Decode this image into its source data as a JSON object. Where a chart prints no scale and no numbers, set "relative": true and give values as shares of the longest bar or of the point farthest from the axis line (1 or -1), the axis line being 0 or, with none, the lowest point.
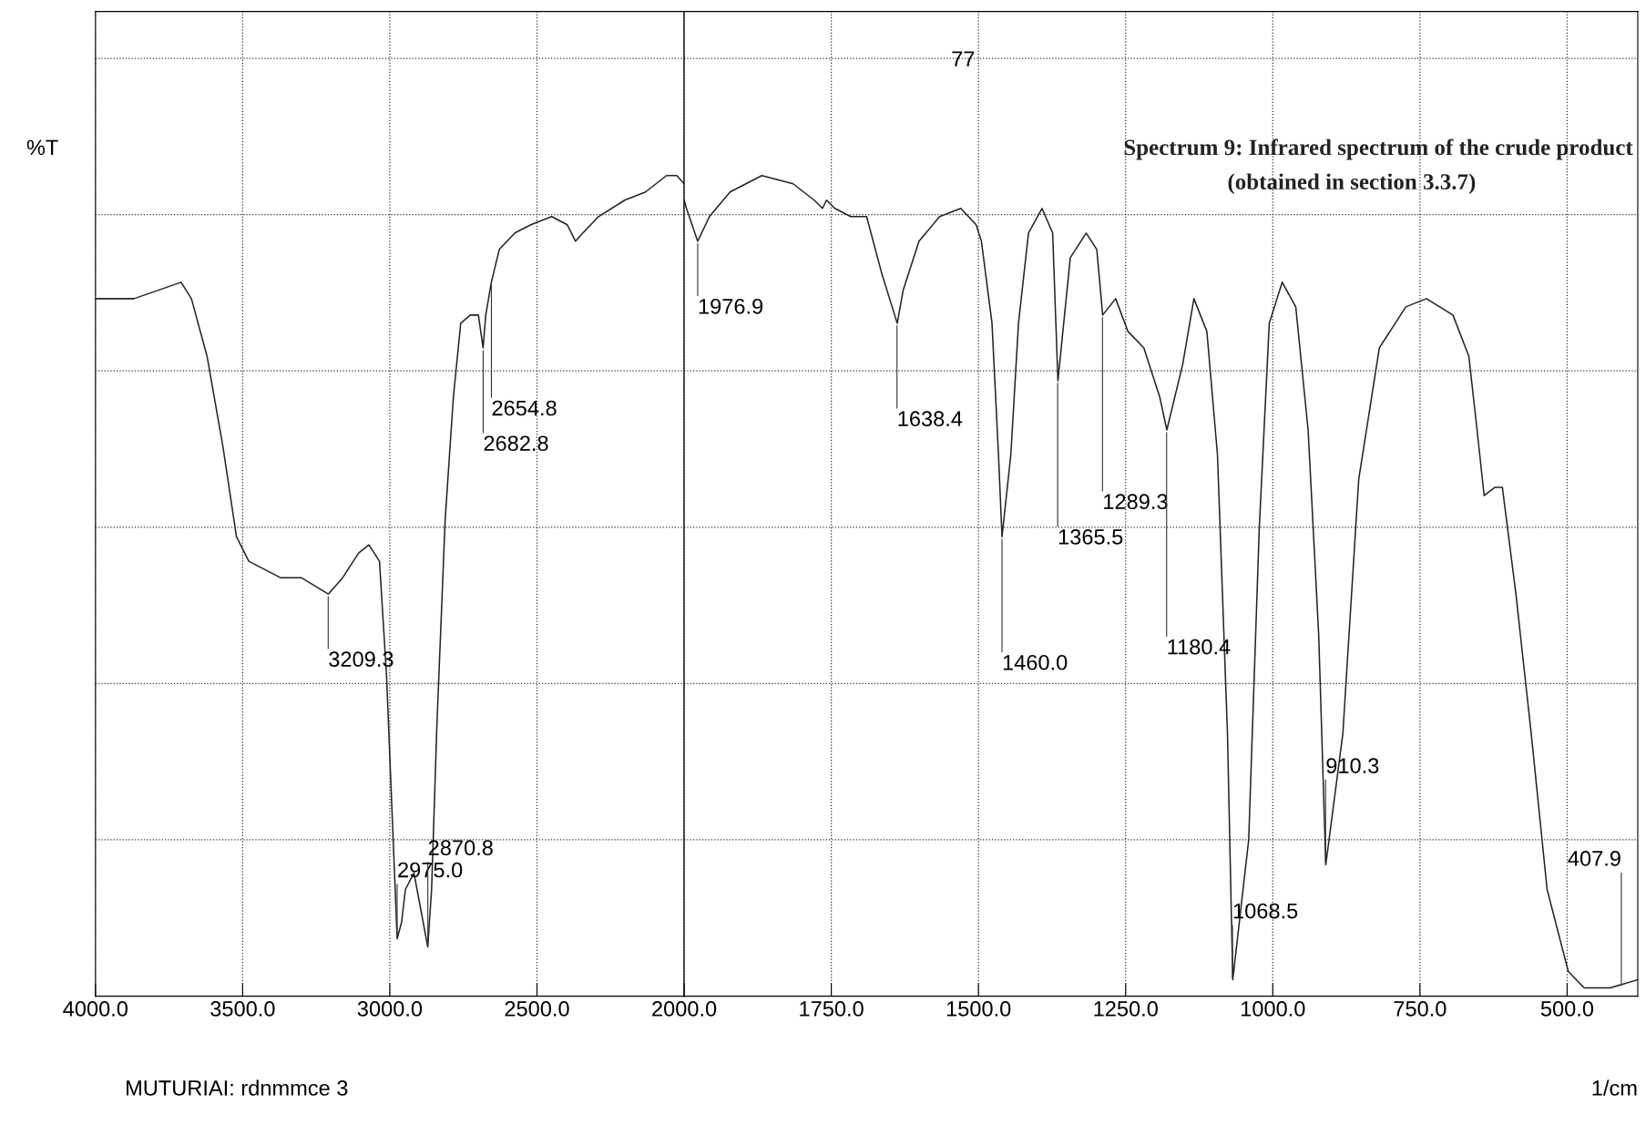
{
  "chart_data": [
    {
      "type": "line",
      "relative": true,
      "ylabel": "%T",
      "xlim": [
        4000,
        2000
      ],
      "xticks": [
        {
          "value": 4000,
          "label": "4000.0"
        },
        {
          "value": 3500,
          "label": "3500.0"
        },
        {
          "value": 3000,
          "label": "3000.0"
        },
        {
          "value": 2500,
          "label": "2500.0"
        }
      ],
      "grid": true,
      "line_style": "dotted",
      "series": [
        {
          "color": "#222222",
          "line_style": "solid",
          "x": [
            4000,
            3869,
            3709,
            3674,
            3621,
            3567,
            3521,
            3479,
            3372,
            3301,
            3209,
            3160,
            3106,
            3071,
            3035,
            3011,
            2975,
            2960,
            2947,
            2918,
            2897,
            2871,
            2858,
            2840,
            2812,
            2784,
            2759,
            2727,
            2699,
            2683,
            2674,
            2655,
            2628,
            2575,
            2521,
            2450,
            2397,
            2369,
            2344,
            2291,
            2202,
            2131,
            2060,
            2025,
            2000
          ],
          "values": [
            0.85,
            0.85,
            0.87,
            0.85,
            0.78,
            0.67,
            0.56,
            0.53,
            0.51,
            0.51,
            0.49,
            0.51,
            0.54,
            0.55,
            0.53,
            0.39,
            0.07,
            0.09,
            0.13,
            0.15,
            0.11,
            0.06,
            0.13,
            0.33,
            0.58,
            0.73,
            0.82,
            0.83,
            0.83,
            0.79,
            0.83,
            0.87,
            0.91,
            0.93,
            0.94,
            0.95,
            0.94,
            0.92,
            0.93,
            0.95,
            0.97,
            0.98,
            1.0,
            1.0,
            0.99
          ]
        }
      ],
      "annotations": [
        {
          "text": "3209.3",
          "x": 3209.3,
          "y": 0.49
        },
        {
          "text": "2975.0",
          "x": 2975.0,
          "y": 0.07
        },
        {
          "text": "2870.8",
          "x": 2870.8,
          "y": 0.06
        },
        {
          "text": "2682.8",
          "x": 2682.8,
          "y": 0.79
        },
        {
          "text": "2654.8",
          "x": 2654.8,
          "y": 0.87
        },
        "MUTURIAI: rdnmmce 3"
      ]
    },
    {
      "type": "line",
      "relative": true,
      "title": "Spectrum 9: Infrared spectrum of the crude product",
      "subtitle": "(obtained in section 3.3.7)",
      "xlabel": "1/cm",
      "xlim": [
        2000,
        380
      ],
      "xticks": [
        {
          "value": 2000,
          "label": "2000.0"
        },
        {
          "value": 1750,
          "label": "1750.0"
        },
        {
          "value": 1500,
          "label": "1500.0"
        },
        {
          "value": 1250,
          "label": "1250.0"
        },
        {
          "value": 1000,
          "label": "1000.0"
        },
        {
          "value": 750,
          "label": "750.0"
        },
        {
          "value": 500,
          "label": "500.0"
        }
      ],
      "grid": true,
      "line_style": "dotted",
      "series": [
        {
          "color": "#222222",
          "line_style": "solid",
          "x": [
            2000,
            1996,
            1977,
            1957,
            1922,
            1868,
            1815,
            1779,
            1765,
            1758,
            1744,
            1717,
            1690,
            1664,
            1638,
            1628,
            1601,
            1566,
            1530,
            1504,
            1495,
            1477,
            1466,
            1460,
            1445,
            1432,
            1415,
            1392,
            1374,
            1365,
            1344,
            1326,
            1317,
            1299,
            1289,
            1267,
            1246,
            1219,
            1192,
            1180,
            1153,
            1134,
            1112,
            1094,
            1077,
            1068,
            1041,
            1023,
            1006,
            984,
            961,
            940,
            922,
            910,
            881,
            854,
            819,
            774,
            739,
            694,
            667,
            653,
            641,
            623,
            610,
            587,
            561,
            534,
            498,
            471,
            427,
            380
          ],
          "values": [
            0.97,
            0.96,
            0.92,
            0.95,
            0.98,
            1.0,
            0.99,
            0.97,
            0.96,
            0.97,
            0.96,
            0.95,
            0.95,
            0.88,
            0.82,
            0.86,
            0.92,
            0.95,
            0.96,
            0.94,
            0.92,
            0.82,
            0.66,
            0.56,
            0.66,
            0.82,
            0.93,
            0.96,
            0.93,
            0.75,
            0.9,
            0.92,
            0.93,
            0.91,
            0.83,
            0.85,
            0.81,
            0.79,
            0.73,
            0.69,
            0.77,
            0.85,
            0.81,
            0.66,
            0.32,
            0.02,
            0.19,
            0.57,
            0.82,
            0.87,
            0.84,
            0.69,
            0.44,
            0.16,
            0.32,
            0.63,
            0.79,
            0.84,
            0.85,
            0.83,
            0.78,
            0.69,
            0.61,
            0.62,
            0.62,
            0.49,
            0.32,
            0.13,
            0.03,
            0.01,
            0.01,
            0.02
          ]
        }
      ],
      "annotations": [
        {
          "text": "1976.9",
          "x": 1976.9,
          "y": 0.92
        },
        {
          "text": "1638.4",
          "x": 1638.4,
          "y": 0.82
        },
        {
          "text": "1460.0",
          "x": 1460.0,
          "y": 0.56
        },
        {
          "text": "1365.5",
          "x": 1365.5,
          "y": 0.75
        },
        {
          "text": "1289.3",
          "x": 1289.3,
          "y": 0.83
        },
        {
          "text": "1180.4",
          "x": 1180.4,
          "y": 0.69
        },
        {
          "text": "1068.5",
          "x": 1068.5,
          "y": 0.02
        },
        {
          "text": "910.3",
          "x": 910.3,
          "y": 0.16
        },
        {
          "text": "407.9",
          "x": 407.9,
          "y": 0.01
        },
        "77"
      ]
    }
  ]
}
